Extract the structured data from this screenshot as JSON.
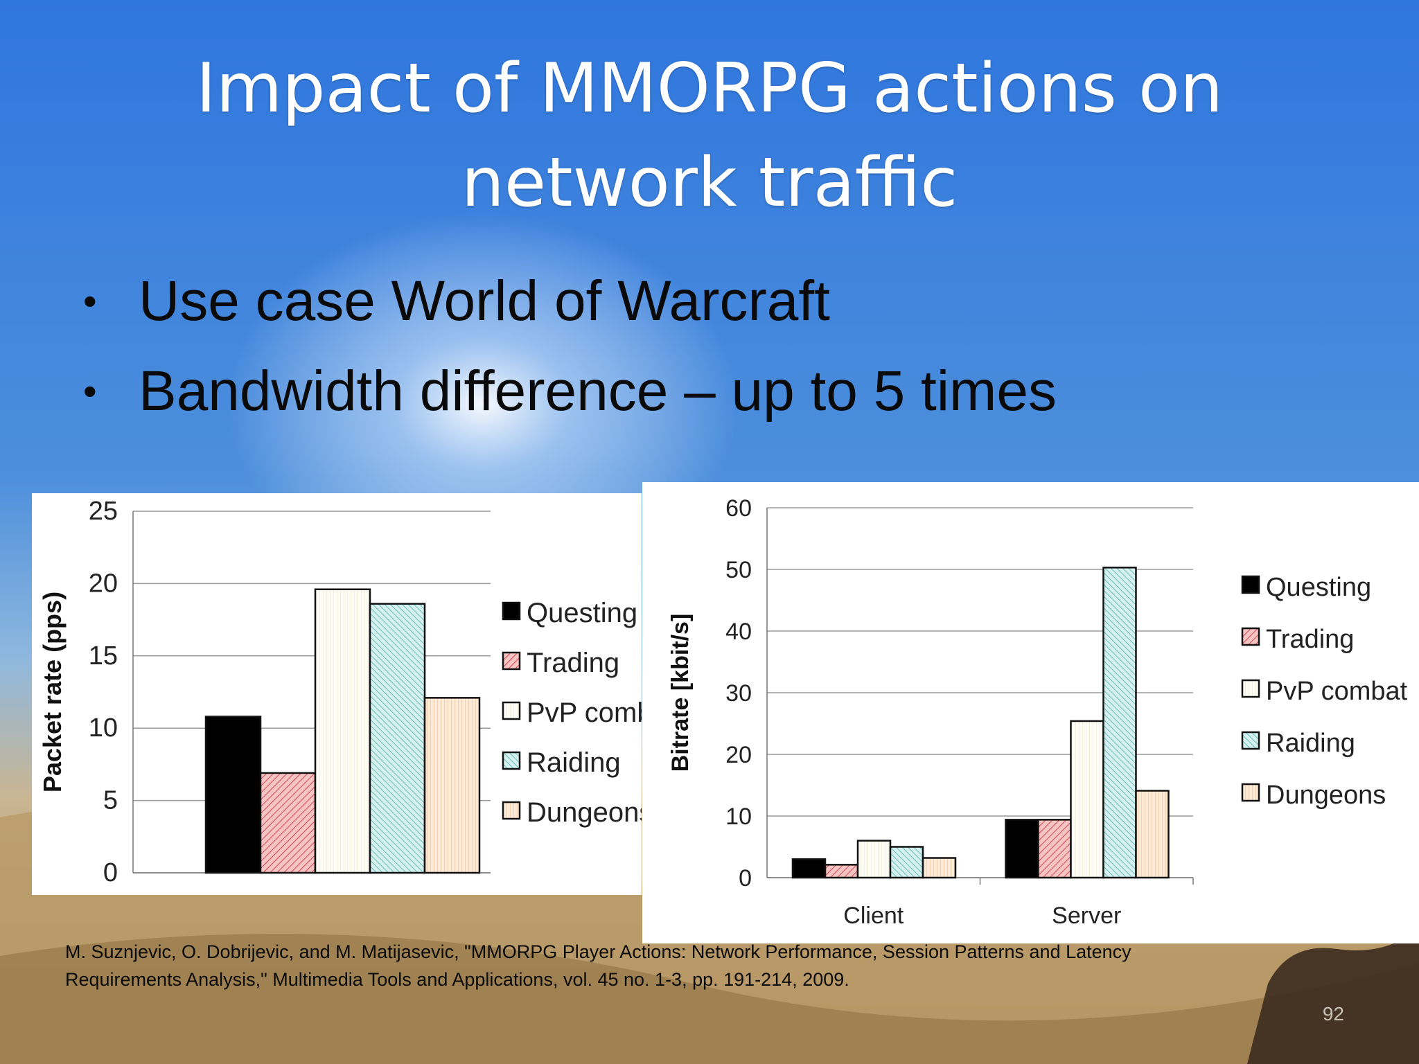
{
  "slide": {
    "title_line1": "Impact of MMORPG actions on",
    "title_line2": "network traffic",
    "bullets": [
      "Use case World of Warcraft",
      "Bandwidth difference – up to 5 times"
    ],
    "citation_line1": "M. Suznjevic, O. Dobrijevic, and M. Matijasevic, \"MMORPG Player Actions: Network Performance, Session Patterns and Latency",
    "citation_line2": "Requirements Analysis,\" Multimedia Tools and Applications, vol. 45 no. 1-3, pp. 191-214, 2009.",
    "page_number": "92"
  },
  "chart_data": [
    {
      "type": "bar",
      "ylabel": "Packet rate (pps)",
      "ylim": [
        0,
        25
      ],
      "yticks": [
        0,
        5,
        10,
        15,
        20,
        25
      ],
      "grid": true,
      "legend_position": "right",
      "series": [
        {
          "name": "Questing",
          "values": [
            10.8
          ],
          "color": "#000000",
          "pattern": "solid"
        },
        {
          "name": "Trading",
          "values": [
            6.9
          ],
          "color": "#f4a6a6",
          "pattern": "hatch-red"
        },
        {
          "name": "PvP comb",
          "values": [
            19.6
          ],
          "color": "#fbfbf0",
          "pattern": "dots-light"
        },
        {
          "name": "Raiding",
          "values": [
            18.6
          ],
          "color": "#bfe8e6",
          "pattern": "hatch-teal"
        },
        {
          "name": "Dungeons",
          "values": [
            12.1
          ],
          "color": "#fbe3cc",
          "pattern": "vlines-peach"
        }
      ]
    },
    {
      "type": "bar",
      "ylabel": "Bitrate [kbit/s]",
      "categories": [
        "Client",
        "Server"
      ],
      "ylim": [
        0,
        60
      ],
      "yticks": [
        0,
        10,
        20,
        30,
        40,
        50,
        60
      ],
      "grid": true,
      "legend_position": "right",
      "series": [
        {
          "name": "Questing",
          "values": [
            3.0,
            9.4
          ],
          "color": "#000000",
          "pattern": "solid"
        },
        {
          "name": "Trading",
          "values": [
            2.1,
            9.4
          ],
          "color": "#f4a6a6",
          "pattern": "hatch-red"
        },
        {
          "name": "PvP combat",
          "values": [
            6.0,
            25.4
          ],
          "color": "#fbfbf0",
          "pattern": "dots-light"
        },
        {
          "name": "Raiding",
          "values": [
            5.0,
            50.3
          ],
          "color": "#bfe8e6",
          "pattern": "hatch-teal"
        },
        {
          "name": "Dungeons",
          "values": [
            3.2,
            14.1
          ],
          "color": "#fbe3cc",
          "pattern": "vlines-peach"
        }
      ]
    }
  ]
}
